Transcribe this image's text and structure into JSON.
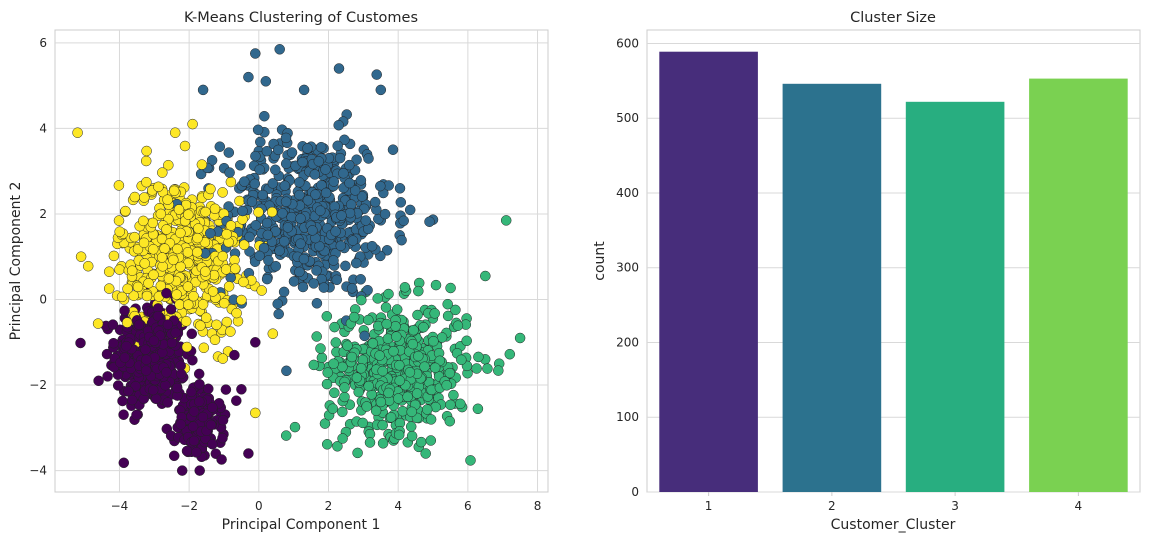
{
  "chart_data": [
    {
      "type": "scatter",
      "title": "K-Means Clustering of Customes",
      "xlabel": "Principal Component 1",
      "ylabel": "Principal Component 2",
      "xlim": [
        -5.85,
        8.3
      ],
      "ylim": [
        -4.5,
        6.3
      ],
      "xticks": [
        -4,
        -2,
        0,
        2,
        4,
        6,
        8
      ],
      "yticks": [
        -4,
        -2,
        0,
        2,
        4,
        6
      ],
      "grid": true,
      "legend": "none",
      "colors": [
        "#440154",
        "#31688e",
        "#35b779",
        "#fde725"
      ],
      "clusters": [
        {
          "cluster": 1,
          "color": "#440154",
          "n": 589,
          "center": [
            -3.0,
            -1.5
          ],
          "spread": [
            0.55,
            0.55
          ],
          "sub": [
            {
              "frac": 0.75,
              "center": [
                -3.1,
                -1.3
              ],
              "spread": [
                0.5,
                0.6
              ]
            },
            {
              "frac": 0.25,
              "center": [
                -1.7,
                -2.9
              ],
              "spread": [
                0.35,
                0.4
              ]
            }
          ],
          "outliers": [
            [
              -4.6,
              -1.9
            ],
            [
              -0.3,
              -3.6
            ],
            [
              -0.7,
              -1.3
            ],
            [
              -2.2,
              -4.0
            ],
            [
              -0.1,
              -1.0
            ],
            [
              -0.5,
              -2.1
            ]
          ]
        },
        {
          "cluster": 2,
          "color": "#31688e",
          "n": 546,
          "center": [
            1.4,
            2.0
          ],
          "spread": [
            1.2,
            0.95
          ],
          "outliers": [
            [
              0.6,
              5.85
            ],
            [
              -0.1,
              5.75
            ],
            [
              2.3,
              5.4
            ],
            [
              -0.3,
              5.2
            ],
            [
              -1.6,
              4.9
            ],
            [
              3.5,
              4.9
            ],
            [
              0.2,
              5.1
            ],
            [
              1.3,
              4.9
            ]
          ]
        },
        {
          "cluster": 3,
          "color": "#35b779",
          "n": 522,
          "center": [
            4.0,
            -1.6
          ],
          "spread": [
            1.0,
            0.75
          ],
          "outliers": [
            [
              7.1,
              1.85
            ],
            [
              7.5,
              -0.9
            ],
            [
              6.9,
              -1.5
            ],
            [
              1.9,
              -2.9
            ],
            [
              2.5,
              -3.1
            ],
            [
              6.5,
              0.55
            ]
          ]
        },
        {
          "cluster": 4,
          "color": "#fde725",
          "n": 553,
          "center": [
            -2.2,
            1.0
          ],
          "spread": [
            0.9,
            0.9
          ],
          "outliers": [
            [
              -5.2,
              3.9
            ],
            [
              -5.1,
              1.0
            ],
            [
              -2.4,
              3.9
            ],
            [
              -1.9,
              4.1
            ],
            [
              -0.1,
              -2.65
            ],
            [
              0.4,
              -0.8
            ],
            [
              -4.0,
              0.7
            ]
          ]
        }
      ]
    },
    {
      "type": "bar",
      "title": "Cluster Size",
      "xlabel": "Customer_Cluster",
      "ylabel": "count",
      "categories": [
        "1",
        "2",
        "3",
        "4"
      ],
      "values": [
        589,
        546,
        522,
        553
      ],
      "ylim": [
        0,
        618
      ],
      "yticks": [
        0,
        100,
        200,
        300,
        400,
        500,
        600
      ],
      "grid": true,
      "colors": [
        "#472d7b",
        "#2c728e",
        "#28ae80",
        "#7ad151"
      ]
    }
  ]
}
